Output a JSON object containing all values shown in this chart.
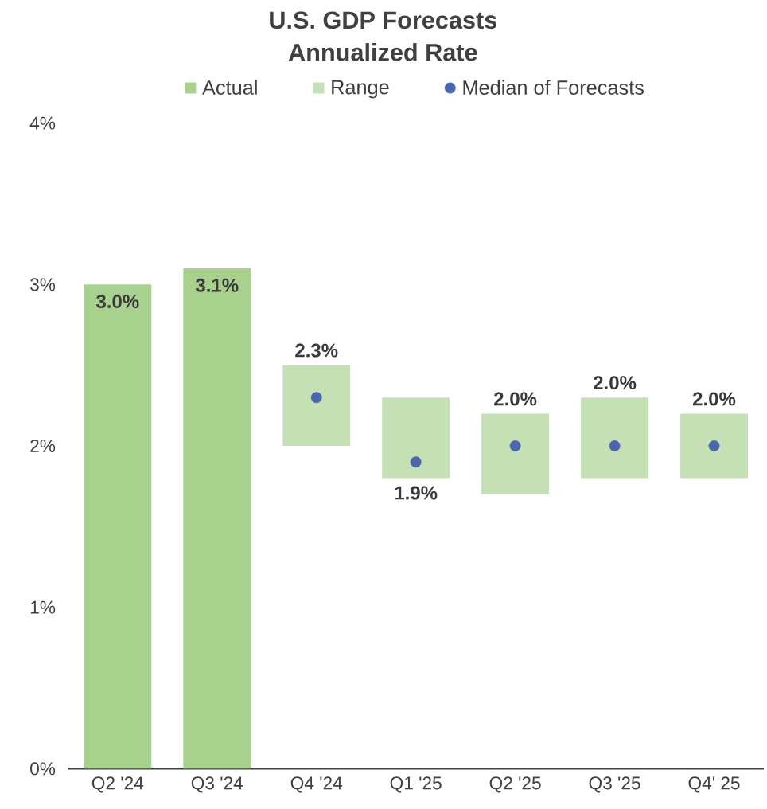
{
  "chart_data": {
    "type": "bar",
    "title": "U.S. GDP Forecasts",
    "subtitle": "Annualized Rate",
    "categories": [
      "Q2 '24",
      "Q3 '24",
      "Q4 '24",
      "Q1 '25",
      "Q2 '25",
      "Q3 '25",
      "Q4' 25"
    ],
    "series": [
      {
        "name": "Actual",
        "color": "#a9d18e",
        "values": [
          3.0,
          3.1,
          null,
          null,
          null,
          null,
          null
        ],
        "value_labels": [
          "3.0%",
          "3.1%",
          null,
          null,
          null,
          null,
          null
        ]
      },
      {
        "name": "Range",
        "color": "#c5e0b4",
        "base": [
          null,
          null,
          2.0,
          1.8,
          1.7,
          1.8,
          1.8
        ],
        "values": [
          null,
          null,
          0.5,
          0.5,
          0.5,
          0.5,
          0.4
        ]
      },
      {
        "name": "Median of Forecasts",
        "type": "scatter",
        "color": "#4a67ad",
        "marker": "circle",
        "values": [
          null,
          null,
          2.3,
          1.9,
          2.0,
          2.0,
          2.0
        ],
        "value_labels": [
          null,
          null,
          "2.3%",
          "1.9%",
          "2.0%",
          "2.0%",
          "2.0%"
        ]
      }
    ],
    "ylim": [
      0,
      4
    ],
    "yticks": [
      {
        "value": 0,
        "label": "0%"
      },
      {
        "value": 1,
        "label": "1%"
      },
      {
        "value": 2,
        "label": "2%"
      },
      {
        "value": 3,
        "label": "3%"
      },
      {
        "value": 4,
        "label": "4%"
      }
    ],
    "legend": "top"
  }
}
